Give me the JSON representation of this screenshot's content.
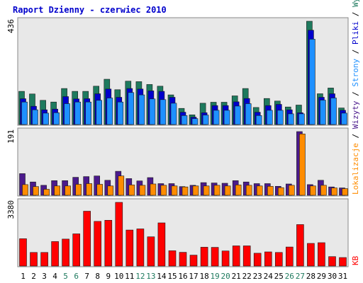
{
  "chart_data": {
    "type": "bar",
    "title": "Raport Dzienny -  czerwiec 2010",
    "categories": [
      "1",
      "2",
      "3",
      "4",
      "5",
      "6",
      "7",
      "8",
      "9",
      "10",
      "11",
      "12",
      "13",
      "14",
      "15",
      "16",
      "17",
      "18",
      "19",
      "20",
      "21",
      "22",
      "23",
      "24",
      "25",
      "26",
      "27",
      "28",
      "29",
      "30",
      "31"
    ],
    "weekend_days": [
      "5",
      "6",
      "12",
      "13",
      "19",
      "20",
      "26",
      "27"
    ],
    "panels": [
      {
        "id": "top",
        "ymax_label": "436",
        "ylim": [
          0,
          436
        ],
        "series": [
          {
            "name": "Wywołania",
            "color": "#1e7a5e",
            "values": [
              140,
              129,
              102,
              95,
              152,
              140,
              140,
              162,
              191,
              147,
              183,
              181,
              169,
              162,
              125,
              68,
              41,
              90,
              94,
              94,
              121,
              152,
              72,
              110,
              99,
              74,
              82,
              436,
              130,
              154,
              70
            ]
          },
          {
            "name": "Pliki",
            "color": "#0000cc",
            "values": [
              109,
              77,
              62,
              65,
              118,
              108,
              109,
              130,
              150,
              115,
              152,
              150,
              142,
              140,
              115,
              52,
              31,
              50,
              80,
              80,
              96,
              110,
              52,
              80,
              85,
              62,
              50,
              398,
              115,
              130,
              60
            ]
          },
          {
            "name": "Strony",
            "color": "#1e90ff",
            "values": [
              95,
              62,
              48,
              50,
              88,
              95,
              95,
              102,
              112,
              95,
              135,
              125,
              108,
              105,
              90,
              38,
              25,
              40,
              60,
              60,
              78,
              88,
              38,
              60,
              60,
              45,
              45,
              360,
              103,
              112,
              48
            ]
          }
        ]
      },
      {
        "id": "middle",
        "ymax_label": "191",
        "ylim": [
          0,
          191
        ],
        "series": [
          {
            "name": "Wizyty",
            "color": "#4b1a8c",
            "values": [
              65,
              40,
              30,
              44,
              44,
              54,
              56,
              58,
              45,
              72,
              50,
              43,
              53,
              35,
              35,
              26,
              30,
              38,
              37,
              36,
              44,
              40,
              35,
              35,
              27,
              34,
              191,
              32,
              45,
              25,
              22
            ]
          },
          {
            "name": "Lokalizacje",
            "color": "#ff8c00",
            "values": [
              32,
              26,
              18,
              28,
              28,
              33,
              35,
              33,
              28,
              58,
              31,
              30,
              34,
              30,
              28,
              25,
              28,
              28,
              30,
              28,
              31,
              30,
              28,
              27,
              23,
              30,
              184,
              28,
              30,
              22,
              20
            ]
          }
        ]
      },
      {
        "id": "bottom",
        "ymax_label": "3380",
        "ylim": [
          0,
          3380
        ],
        "series": [
          {
            "name": "KB",
            "color": "#ff0000",
            "values": [
              1450,
              720,
              720,
              1300,
              1430,
              1710,
              2910,
              2370,
              2430,
              3380,
              1910,
              1970,
              1550,
              2290,
              810,
              730,
              580,
              1000,
              990,
              800,
              1070,
              1070,
              680,
              750,
              720,
              1010,
              2200,
              1200,
              1240,
              500,
              450
            ]
          }
        ]
      }
    ],
    "legend_right": [
      "Wywołania",
      "/",
      "Pliki",
      "/",
      "Strony",
      "/",
      "Wizyty",
      "/",
      "Lokalizacje",
      "KB"
    ]
  }
}
